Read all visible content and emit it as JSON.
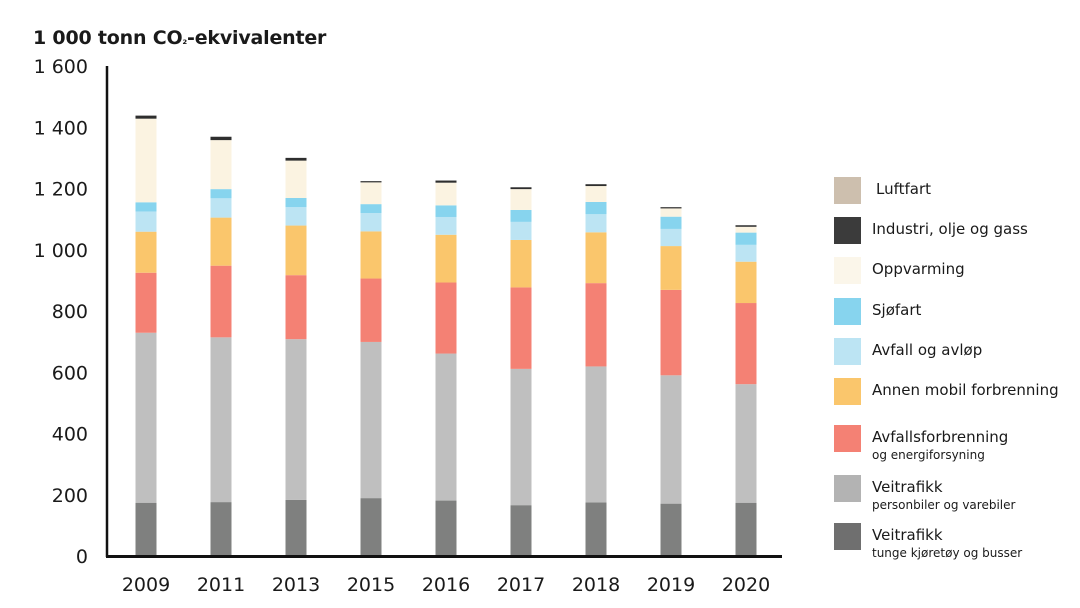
{
  "chart_data": {
    "type": "bar",
    "stacked": true,
    "title": "",
    "ylabel": "1 000 tonn CO₂-ekvivalenter",
    "ylabel_prefix": "1 000 tonn CO",
    "ylabel_sub": "₂",
    "ylabel_suffix": "-ekvivalenter",
    "xlabel": "",
    "ylim": [
      0,
      1600
    ],
    "yticks": [
      0,
      200,
      400,
      600,
      800,
      1000,
      1200,
      1400,
      1600
    ],
    "ytick_labels": [
      "0",
      "200",
      "400",
      "600",
      "800",
      "1 000",
      "1 200",
      "1 400",
      "1 600"
    ],
    "grid": false,
    "legend_placement": "right",
    "categories": [
      "2009",
      "2011",
      "2013",
      "2015",
      "2016",
      "2017",
      "2018",
      "2019",
      "2020"
    ],
    "series": [
      {
        "name": "Veitrafikk",
        "subtitle": "tunge kjøretøy og busser",
        "color": "#7f807f",
        "legend_color": "#6f6f6f",
        "values": [
          174,
          176,
          183,
          189,
          181,
          166,
          175,
          171,
          174
        ]
      },
      {
        "name": "Veitrafikk",
        "subtitle": "personbiler og varebiler",
        "color": "#bfbfbf",
        "legend_color": "#b3b3b3",
        "values": [
          555,
          538,
          525,
          510,
          480,
          445,
          444,
          419,
          387
        ]
      },
      {
        "name": "Avfallsforbrenning",
        "subtitle": "og energiforsyning",
        "color": "#f48174",
        "legend_color": "#f48174",
        "values": [
          196,
          234,
          209,
          207,
          232,
          266,
          272,
          279,
          265
        ]
      },
      {
        "name": "Annen mobil forbrenning",
        "subtitle": "",
        "color": "#fac66c",
        "legend_color": "#fac66c",
        "values": [
          134,
          157,
          162,
          154,
          156,
          155,
          166,
          143,
          135
        ]
      },
      {
        "name": "Avfall og avløp",
        "subtitle": "",
        "color": "#bce4f3",
        "legend_color": "#bce4f3",
        "values": [
          66,
          63,
          60,
          60,
          58,
          59,
          59,
          56,
          55
        ]
      },
      {
        "name": "Sjøfart",
        "subtitle": "",
        "color": "#87d4ee",
        "legend_color": "#87d4ee",
        "values": [
          30,
          30,
          30,
          29,
          38,
          39,
          40,
          40,
          40
        ]
      },
      {
        "name": "Oppvarming",
        "subtitle": "",
        "color": "#fbf3e1",
        "legend_color": "#fbf6ea",
        "values": [
          273,
          160,
          122,
          71,
          74,
          68,
          52,
          27,
          19
        ]
      },
      {
        "name": "Industri, olje og gass",
        "subtitle": "",
        "color": "#2e2e2e",
        "legend_color": "#3b3b3b",
        "values": [
          10,
          11,
          9,
          4,
          7,
          6,
          6,
          4,
          5
        ]
      },
      {
        "name": "Luftfart",
        "subtitle": "",
        "color": "#cdbfae",
        "legend_color": "#cdbfae",
        "values": [
          0,
          0,
          0,
          0,
          0,
          0,
          0,
          0,
          0
        ]
      }
    ]
  }
}
